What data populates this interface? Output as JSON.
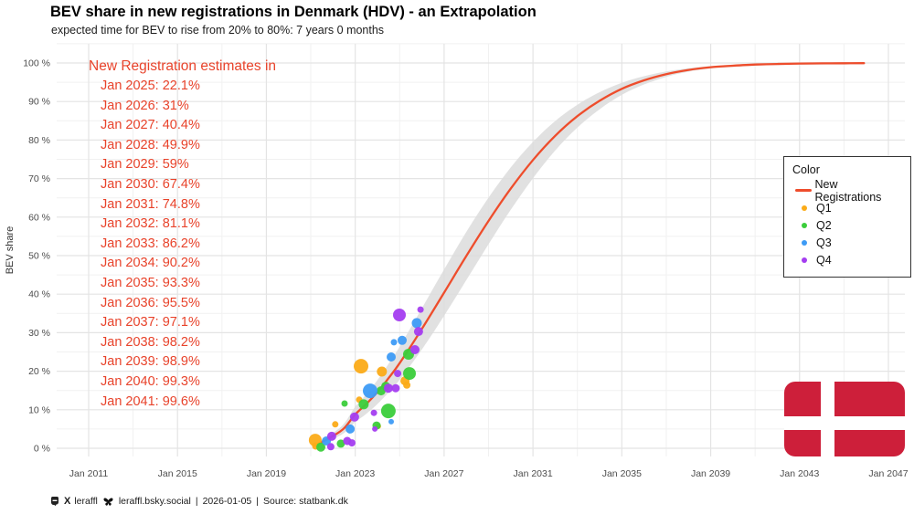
{
  "header": {
    "title": "BEV share in new registrations in Denmark (HDV) - an Extrapolation",
    "subtitle": "expected time for BEV to rise from 20% to 80%: 7 years 0 months"
  },
  "annotations": {
    "heading": "New Registration estimates in",
    "color": "#e8432b"
  },
  "legend": {
    "title": "Color",
    "line_item": {
      "label": "New Registrations",
      "color": "#ee4d2c"
    },
    "items": [
      {
        "label": "Q1",
        "color": "#fbab18"
      },
      {
        "label": "Q2",
        "color": "#3bcd3b"
      },
      {
        "label": "Q3",
        "color": "#3d9bf5"
      },
      {
        "label": "Q4",
        "color": "#a43df0"
      }
    ]
  },
  "axes": {
    "y_label": "BEV share",
    "y_ticks": [
      "100 %",
      "90 %",
      "80 %",
      "70 %",
      "60 %",
      "50 %",
      "40 %",
      "30 %",
      "20 %",
      "10 %",
      "0 %"
    ],
    "x_ticks": [
      "Jan 2011",
      "Jan 2015",
      "Jan 2019",
      "Jan 2023",
      "Jan 2027",
      "Jan 2031",
      "Jan 2035",
      "Jan 2039",
      "Jan 2043",
      "Jan 2047"
    ]
  },
  "footer": {
    "mastodon_handle": "leraffl",
    "bluesky_handle": "leraffl.bsky.social",
    "separator": "|",
    "date": "2026-01-05",
    "source": "Source: statbank.dk"
  },
  "flag": {
    "country": "Denmark",
    "red": "#cd1f3a"
  },
  "chart_data": {
    "type": "scatter",
    "title": "BEV share in new registrations in Denmark (HDV) - an Extrapolation",
    "subtitle": "expected time for BEV to rise from 20% to 80%: 7 years 0 months",
    "xlabel": "",
    "ylabel": "BEV share",
    "x_tick_years": [
      2011,
      2015,
      2019,
      2023,
      2027,
      2031,
      2035,
      2039,
      2043,
      2047
    ],
    "ylim_pct": [
      0,
      100
    ],
    "grid": "on",
    "legend_position": "right",
    "band_color": "#dcdcdc",
    "line_series": {
      "name": "New Registrations",
      "color": "#ee4d2c",
      "pre_fit_points": [
        [
          2021.35,
          1.2
        ],
        [
          2022.0,
          3.2
        ],
        [
          2022.5,
          5.2
        ],
        [
          2023.0,
          8.8
        ],
        [
          2023.5,
          11.5
        ],
        [
          2024.0,
          14.6
        ],
        [
          2024.5,
          18.2
        ]
      ],
      "post_fit_points": [
        [
          2042,
          99.75
        ],
        [
          2043,
          99.85
        ],
        [
          2044,
          99.9
        ],
        [
          2045,
          99.93
        ],
        [
          2045.9,
          99.95
        ]
      ]
    },
    "estimates": [
      [
        "Jan 2025",
        22.1
      ],
      [
        "Jan 2026",
        31
      ],
      [
        "Jan 2027",
        40.4
      ],
      [
        "Jan 2028",
        49.9
      ],
      [
        "Jan 2029",
        59
      ],
      [
        "Jan 2030",
        67.4
      ],
      [
        "Jan 2031",
        74.8
      ],
      [
        "Jan 2032",
        81.1
      ],
      [
        "Jan 2033",
        86.2
      ],
      [
        "Jan 2034",
        90.2
      ],
      [
        "Jan 2035",
        93.3
      ],
      [
        "Jan 2036",
        95.5
      ],
      [
        "Jan 2037",
        97.1
      ],
      [
        "Jan 2038",
        98.2
      ],
      [
        "Jan 2039",
        98.9
      ],
      [
        "Jan 2040",
        99.3
      ],
      [
        "Jan 2041",
        99.6
      ]
    ],
    "scatter": [
      {
        "name": "Q1",
        "color": "#fbab18",
        "points": [
          [
            2021.2,
            2.1,
            7
          ],
          [
            2021.22,
            0.6,
            4
          ],
          [
            2022.1,
            6.2,
            3.5
          ],
          [
            2023.18,
            12.6,
            3.5
          ],
          [
            2023.26,
            21.3,
            8
          ],
          [
            2024.04,
            5.7,
            3
          ],
          [
            2024.2,
            19.9,
            5.5
          ],
          [
            2025.24,
            17.5,
            5
          ],
          [
            2025.32,
            16.4,
            4
          ]
        ]
      },
      {
        "name": "Q2",
        "color": "#3bcd3b",
        "points": [
          [
            2021.45,
            0.3,
            5
          ],
          [
            2022.35,
            1.2,
            4.5
          ],
          [
            2022.52,
            11.6,
            3.5
          ],
          [
            2023.38,
            11.4,
            5.5
          ],
          [
            2023.96,
            5.9,
            4.5
          ],
          [
            2024.16,
            14.9,
            5
          ],
          [
            2024.37,
            16.1,
            5
          ],
          [
            2024.49,
            9.7,
            8
          ],
          [
            2025.4,
            24.4,
            6
          ],
          [
            2025.44,
            19.4,
            7
          ]
        ]
      },
      {
        "name": "Q3",
        "color": "#3d9bf5",
        "points": [
          [
            2021.7,
            1.9,
            5
          ],
          [
            2022.77,
            5.0,
            5
          ],
          [
            2023.67,
            14.9,
            8
          ],
          [
            2024.62,
            6.9,
            3
          ],
          [
            2024.62,
            23.7,
            5
          ],
          [
            2024.74,
            27.5,
            3.5
          ],
          [
            2025.11,
            28.0,
            5
          ],
          [
            2025.77,
            32.5,
            5.5
          ]
        ]
      },
      {
        "name": "Q4",
        "color": "#a43df0",
        "points": [
          [
            2021.9,
            0.4,
            4
          ],
          [
            2021.94,
            3.1,
            5
          ],
          [
            2022.64,
            1.9,
            4.5
          ],
          [
            2022.85,
            1.4,
            4
          ],
          [
            2022.97,
            8.1,
            5
          ],
          [
            2023.84,
            9.2,
            3.5
          ],
          [
            2023.88,
            5.0,
            3
          ],
          [
            2024.49,
            15.6,
            5
          ],
          [
            2024.82,
            15.6,
            4.5
          ],
          [
            2024.91,
            19.4,
            4
          ],
          [
            2024.99,
            34.6,
            7
          ],
          [
            2025.69,
            25.6,
            5
          ],
          [
            2025.85,
            30.3,
            5
          ],
          [
            2025.94,
            36.0,
            3.5
          ]
        ]
      }
    ]
  }
}
